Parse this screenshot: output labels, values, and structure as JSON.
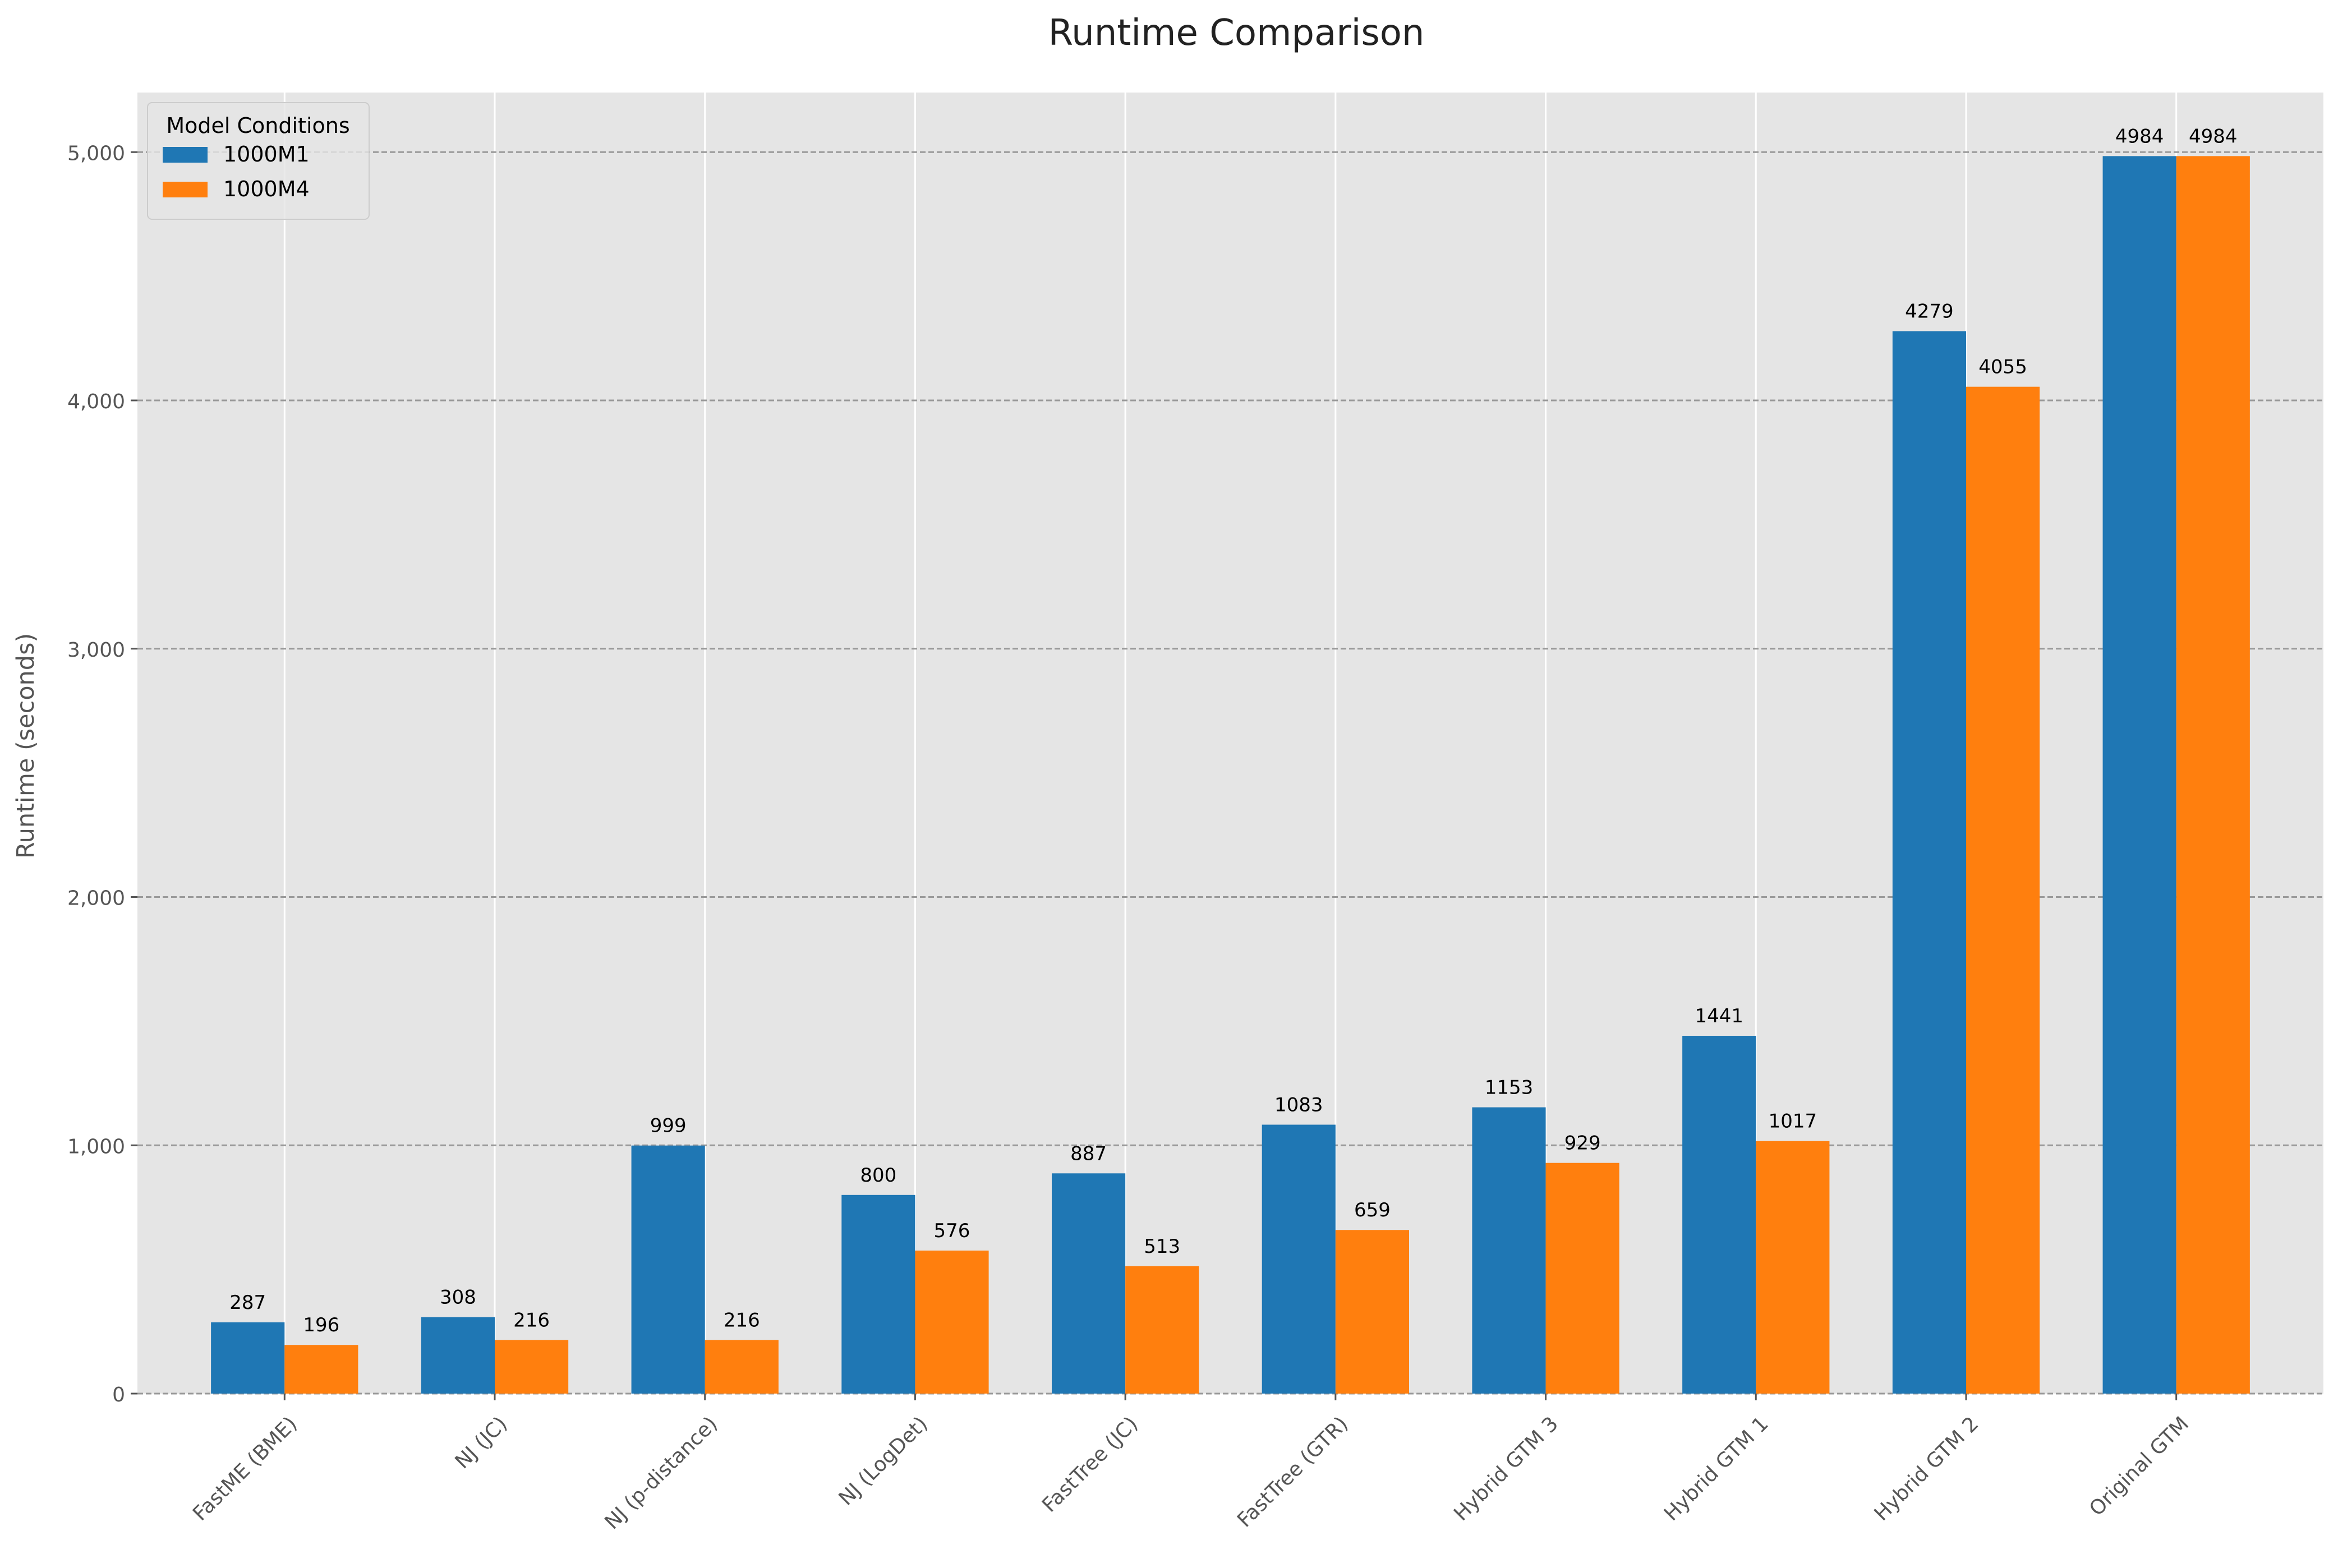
{
  "chart_data": {
    "type": "bar",
    "title": "Runtime Comparison",
    "xlabel": "",
    "ylabel": "Runtime (seconds)",
    "ylim": [
      0,
      5240
    ],
    "yticks": [
      0,
      1000,
      2000,
      3000,
      4000,
      5000
    ],
    "ytick_labels": [
      "0",
      "1,000",
      "2,000",
      "3,000",
      "4,000",
      "5,000"
    ],
    "categories": [
      "FastME (BME)",
      "NJ (JC)",
      "NJ (p-distance)",
      "NJ (LogDet)",
      "FastTree (JC)",
      "FastTree (GTR)",
      "Hybrid GTM 3",
      "Hybrid GTM 1",
      "Hybrid GTM 2",
      "Original GTM"
    ],
    "series": [
      {
        "name": "1000M1",
        "color": "#1f77b4",
        "values": [
          287,
          308,
          999,
          800,
          887,
          1083,
          1153,
          1441,
          4279,
          4984
        ]
      },
      {
        "name": "1000M4",
        "color": "#ff7f0e",
        "values": [
          196,
          216,
          216,
          576,
          513,
          659,
          929,
          1017,
          4055,
          4984
        ]
      }
    ],
    "legend": {
      "title": "Model Conditions",
      "position": "top-left"
    },
    "grid": {
      "y": "dashed",
      "x": "solid"
    },
    "background": "#e5e5e5"
  }
}
